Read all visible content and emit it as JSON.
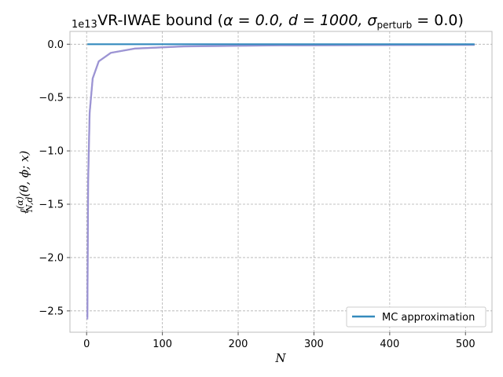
{
  "chart_data": {
    "type": "line",
    "title": "VR-IWAE bound (α = 0.0, d = 1000, σ_perturb = 0.0)",
    "title_parts": {
      "prefix": "VR-IWAE bound (",
      "alpha": "α = 0.0, ",
      "d": "d = 1000, ",
      "sigma": "σ",
      "sigma_sub": "perturb",
      "sigma_val": " = 0.0)"
    },
    "xlabel": "N",
    "ylabel": "ℓ",
    "ylabel_sup": "(α)",
    "ylabel_sub": "N,d",
    "ylabel_rest": "(θ, ϕ; x)",
    "y_offset_label": "1e13",
    "xlim": [
      -22,
      535
    ],
    "ylim": [
      -2.7,
      0.12
    ],
    "xticks": [
      0,
      100,
      200,
      300,
      400,
      500
    ],
    "yticks": [
      -2.5,
      -2.0,
      -1.5,
      -1.0,
      -0.5,
      0.0
    ],
    "ytick_labels": [
      "−2.5",
      "−2.0",
      "−1.5",
      "−1.0",
      "−0.5",
      "0.0"
    ],
    "grid": true,
    "legend_position": "lower-right",
    "series": [
      {
        "name": "MC approximation",
        "color": "#348abd",
        "x": [
          1,
          512
        ],
        "y": [
          0.0,
          0.0
        ]
      },
      {
        "color": "#988ed5",
        "x": [
          1,
          2,
          4,
          8,
          16,
          32,
          64,
          128,
          256,
          512
        ],
        "y": [
          -2.58,
          -1.29,
          -0.645,
          -0.322,
          -0.161,
          -0.081,
          -0.04,
          -0.02,
          -0.01,
          -0.005
        ]
      },
      {
        "color": "#a8a4c8",
        "x": [
          1,
          2,
          4,
          8,
          16,
          32,
          64,
          128,
          256,
          512
        ],
        "y": [
          -2.56,
          -1.28,
          -0.64,
          -0.32,
          -0.16,
          -0.08,
          -0.041,
          -0.021,
          -0.011,
          -0.006
        ]
      }
    ]
  }
}
